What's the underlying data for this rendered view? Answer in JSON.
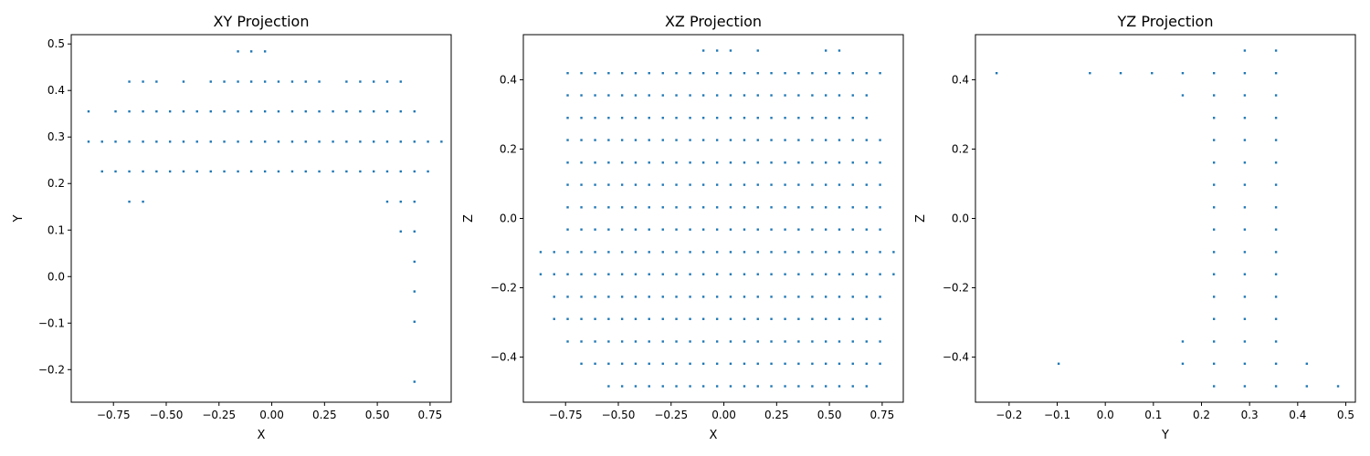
{
  "chart_data": [
    {
      "type": "scatter",
      "title": "XY Projection",
      "xlabel": "X",
      "ylabel": "Y",
      "xlim": [
        -0.95,
        0.85
      ],
      "ylim": [
        -0.27,
        0.52
      ],
      "xticks": [
        -0.75,
        -0.5,
        -0.25,
        0.0,
        0.25,
        0.5,
        0.75
      ],
      "xtick_labels": [
        "−0.75",
        "−0.50",
        "−0.25",
        "0.00",
        "0.25",
        "0.50",
        "0.75"
      ],
      "yticks": [
        -0.2,
        -0.1,
        0.0,
        0.1,
        0.2,
        0.3,
        0.4,
        0.5
      ],
      "ytick_labels": [
        "−0.2",
        "−0.1",
        "0.0",
        "0.1",
        "0.2",
        "0.3",
        "0.4",
        "0.5"
      ],
      "series": [
        {
          "color": "#1f77b4",
          "rows": [
            {
              "y": 0.484,
              "x": [
                -0.16,
                -0.097,
                -0.032
              ]
            },
            {
              "y": 0.419,
              "x": [
                -0.675,
                -0.61,
                -0.546,
                -0.418,
                -0.289,
                -0.225,
                -0.16,
                -0.097,
                -0.032,
                0.032,
                0.097,
                0.161,
                0.225,
                0.354,
                0.419,
                0.483,
                0.547,
                0.611
              ]
            },
            {
              "y": 0.355,
              "x": [
                -0.868,
                -0.74,
                -0.675,
                -0.61,
                -0.546,
                -0.482,
                -0.418,
                -0.354,
                -0.289,
                -0.225,
                -0.16,
                -0.097,
                -0.032,
                0.032,
                0.097,
                0.161,
                0.225,
                0.29,
                0.354,
                0.419,
                0.483,
                0.547,
                0.611,
                0.676
              ]
            },
            {
              "y": 0.29,
              "x": [
                -0.868,
                -0.804,
                -0.74,
                -0.675,
                -0.61,
                -0.546,
                -0.482,
                -0.418,
                -0.354,
                -0.289,
                -0.225,
                -0.16,
                -0.097,
                -0.032,
                0.032,
                0.097,
                0.161,
                0.225,
                0.29,
                0.354,
                0.419,
                0.483,
                0.547,
                0.611,
                0.676,
                0.74,
                0.804
              ]
            },
            {
              "y": 0.226,
              "x": [
                -0.804,
                -0.74,
                -0.675,
                -0.61,
                -0.546,
                -0.482,
                -0.418,
                -0.354,
                -0.289,
                -0.225,
                -0.16,
                -0.097,
                -0.032,
                0.032,
                0.097,
                0.161,
                0.225,
                0.29,
                0.354,
                0.419,
                0.483,
                0.547,
                0.611,
                0.676,
                0.74
              ]
            },
            {
              "y": 0.161,
              "x": [
                -0.675,
                -0.61,
                0.547,
                0.611,
                0.676
              ]
            },
            {
              "y": 0.097,
              "x": [
                0.611,
                0.676
              ]
            },
            {
              "y": 0.032,
              "x": [
                0.676
              ]
            },
            {
              "y": -0.032,
              "x": [
                0.676
              ]
            },
            {
              "y": -0.097,
              "x": [
                0.676
              ]
            },
            {
              "y": -0.226,
              "x": [
                0.676
              ]
            }
          ]
        }
      ]
    },
    {
      "type": "scatter",
      "title": "XZ Projection",
      "xlabel": "X",
      "ylabel": "Z",
      "xlim": [
        -0.95,
        0.85
      ],
      "ylim": [
        -0.53,
        0.53
      ],
      "xticks": [
        -0.75,
        -0.5,
        -0.25,
        0.0,
        0.25,
        0.5,
        0.75
      ],
      "xtick_labels": [
        "−0.75",
        "−0.50",
        "−0.25",
        "0.00",
        "0.25",
        "0.50",
        "0.75"
      ],
      "yticks": [
        -0.4,
        -0.2,
        0.0,
        0.2,
        0.4
      ],
      "ytick_labels": [
        "−0.4",
        "−0.2",
        "0.0",
        "0.2",
        "0.4"
      ],
      "series": [
        {
          "color": "#1f77b4",
          "rows": [
            {
              "y": 0.484,
              "x": [
                -0.097,
                -0.032,
                0.032,
                0.161,
                0.483,
                0.547
              ]
            },
            {
              "y": 0.419,
              "x": [
                -0.74,
                -0.675,
                -0.61,
                -0.546,
                -0.482,
                -0.418,
                -0.354,
                -0.289,
                -0.225,
                -0.16,
                -0.097,
                -0.032,
                0.032,
                0.097,
                0.161,
                0.225,
                0.29,
                0.354,
                0.419,
                0.483,
                0.547,
                0.611,
                0.676,
                0.74
              ]
            },
            {
              "y": 0.355,
              "x": [
                -0.74,
                -0.675,
                -0.61,
                -0.546,
                -0.482,
                -0.418,
                -0.354,
                -0.289,
                -0.225,
                -0.16,
                -0.097,
                -0.032,
                0.032,
                0.097,
                0.161,
                0.225,
                0.29,
                0.354,
                0.419,
                0.483,
                0.547,
                0.611,
                0.676
              ]
            },
            {
              "y": 0.29,
              "x": [
                -0.74,
                -0.675,
                -0.61,
                -0.546,
                -0.482,
                -0.418,
                -0.354,
                -0.289,
                -0.225,
                -0.16,
                -0.097,
                -0.032,
                0.032,
                0.097,
                0.161,
                0.225,
                0.29,
                0.354,
                0.419,
                0.483,
                0.547,
                0.611,
                0.676
              ]
            },
            {
              "y": 0.226,
              "x": [
                -0.74,
                -0.675,
                -0.61,
                -0.546,
                -0.482,
                -0.418,
                -0.354,
                -0.289,
                -0.225,
                -0.16,
                -0.097,
                -0.032,
                0.032,
                0.097,
                0.161,
                0.225,
                0.29,
                0.354,
                0.419,
                0.483,
                0.547,
                0.611,
                0.676,
                0.74
              ]
            },
            {
              "y": 0.161,
              "x": [
                -0.74,
                -0.675,
                -0.61,
                -0.546,
                -0.482,
                -0.418,
                -0.354,
                -0.289,
                -0.225,
                -0.16,
                -0.097,
                -0.032,
                0.032,
                0.097,
                0.161,
                0.225,
                0.29,
                0.354,
                0.419,
                0.483,
                0.547,
                0.611,
                0.676,
                0.74
              ]
            },
            {
              "y": 0.097,
              "x": [
                -0.74,
                -0.675,
                -0.61,
                -0.546,
                -0.482,
                -0.418,
                -0.354,
                -0.289,
                -0.225,
                -0.16,
                -0.097,
                -0.032,
                0.032,
                0.097,
                0.161,
                0.225,
                0.29,
                0.354,
                0.419,
                0.483,
                0.547,
                0.611,
                0.676,
                0.74
              ]
            },
            {
              "y": 0.032,
              "x": [
                -0.74,
                -0.675,
                -0.61,
                -0.546,
                -0.482,
                -0.418,
                -0.354,
                -0.289,
                -0.225,
                -0.16,
                -0.097,
                -0.032,
                0.032,
                0.097,
                0.161,
                0.225,
                0.29,
                0.354,
                0.419,
                0.483,
                0.547,
                0.611,
                0.676,
                0.74
              ]
            },
            {
              "y": -0.032,
              "x": [
                -0.74,
                -0.675,
                -0.61,
                -0.546,
                -0.482,
                -0.418,
                -0.354,
                -0.289,
                -0.225,
                -0.16,
                -0.097,
                -0.032,
                0.032,
                0.097,
                0.161,
                0.225,
                0.29,
                0.354,
                0.419,
                0.483,
                0.547,
                0.611,
                0.676,
                0.74
              ]
            },
            {
              "y": -0.097,
              "x": [
                -0.868,
                -0.804,
                -0.74,
                -0.675,
                -0.61,
                -0.546,
                -0.482,
                -0.418,
                -0.354,
                -0.289,
                -0.225,
                -0.16,
                -0.097,
                -0.032,
                0.032,
                0.097,
                0.161,
                0.225,
                0.29,
                0.354,
                0.419,
                0.483,
                0.547,
                0.611,
                0.676,
                0.74,
                0.804
              ]
            },
            {
              "y": -0.161,
              "x": [
                -0.868,
                -0.804,
                -0.74,
                -0.675,
                -0.61,
                -0.546,
                -0.482,
                -0.418,
                -0.354,
                -0.289,
                -0.225,
                -0.16,
                -0.097,
                -0.032,
                0.032,
                0.097,
                0.161,
                0.225,
                0.29,
                0.354,
                0.419,
                0.483,
                0.547,
                0.611,
                0.676,
                0.74,
                0.804
              ]
            },
            {
              "y": -0.226,
              "x": [
                -0.804,
                -0.74,
                -0.675,
                -0.61,
                -0.546,
                -0.482,
                -0.418,
                -0.354,
                -0.289,
                -0.225,
                -0.16,
                -0.097,
                -0.032,
                0.032,
                0.097,
                0.161,
                0.225,
                0.29,
                0.354,
                0.419,
                0.483,
                0.547,
                0.611,
                0.676,
                0.74
              ]
            },
            {
              "y": -0.29,
              "x": [
                -0.804,
                -0.74,
                -0.675,
                -0.61,
                -0.546,
                -0.482,
                -0.418,
                -0.354,
                -0.289,
                -0.225,
                -0.16,
                -0.097,
                -0.032,
                0.032,
                0.097,
                0.161,
                0.225,
                0.29,
                0.354,
                0.419,
                0.483,
                0.547,
                0.611,
                0.676,
                0.74
              ]
            },
            {
              "y": -0.355,
              "x": [
                -0.74,
                -0.675,
                -0.61,
                -0.546,
                -0.482,
                -0.418,
                -0.354,
                -0.289,
                -0.225,
                -0.16,
                -0.097,
                -0.032,
                0.032,
                0.097,
                0.161,
                0.225,
                0.29,
                0.354,
                0.419,
                0.483,
                0.547,
                0.611,
                0.676,
                0.74
              ]
            },
            {
              "y": -0.419,
              "x": [
                -0.675,
                -0.61,
                -0.546,
                -0.482,
                -0.418,
                -0.354,
                -0.289,
                -0.225,
                -0.16,
                -0.097,
                -0.032,
                0.032,
                0.097,
                0.161,
                0.225,
                0.29,
                0.354,
                0.419,
                0.483,
                0.547,
                0.611,
                0.676,
                0.74
              ]
            },
            {
              "y": -0.484,
              "x": [
                -0.546,
                -0.482,
                -0.418,
                -0.354,
                -0.289,
                -0.225,
                -0.16,
                -0.097,
                -0.032,
                0.032,
                0.097,
                0.161,
                0.225,
                0.29,
                0.354,
                0.419,
                0.483,
                0.547,
                0.611,
                0.676
              ]
            }
          ]
        }
      ]
    },
    {
      "type": "scatter",
      "title": "YZ Projection",
      "xlabel": "Y",
      "ylabel": "Z",
      "xlim": [
        -0.27,
        0.52
      ],
      "ylim": [
        -0.53,
        0.53
      ],
      "xticks": [
        -0.2,
        -0.1,
        0.0,
        0.1,
        0.2,
        0.3,
        0.4,
        0.5
      ],
      "xtick_labels": [
        "−0.2",
        "−0.1",
        "0.0",
        "0.1",
        "0.2",
        "0.3",
        "0.4",
        "0.5"
      ],
      "yticks": [
        -0.4,
        -0.2,
        0.0,
        0.2,
        0.4
      ],
      "ytick_labels": [
        "−0.4",
        "−0.2",
        "0.0",
        "0.2",
        "0.4"
      ],
      "series": [
        {
          "color": "#1f77b4",
          "rows": [
            {
              "y": 0.484,
              "x": [
                0.29,
                0.355
              ]
            },
            {
              "y": 0.419,
              "x": [
                -0.226,
                -0.032,
                0.032,
                0.097,
                0.161,
                0.226,
                0.29,
                0.355
              ]
            },
            {
              "y": 0.355,
              "x": [
                0.161,
                0.226,
                0.29,
                0.355
              ]
            },
            {
              "y": 0.29,
              "x": [
                0.226,
                0.29,
                0.355
              ]
            },
            {
              "y": 0.226,
              "x": [
                0.226,
                0.29,
                0.355
              ]
            },
            {
              "y": 0.161,
              "x": [
                0.226,
                0.29,
                0.355
              ]
            },
            {
              "y": 0.097,
              "x": [
                0.226,
                0.29,
                0.355
              ]
            },
            {
              "y": 0.032,
              "x": [
                0.226,
                0.29,
                0.355
              ]
            },
            {
              "y": -0.032,
              "x": [
                0.226,
                0.29,
                0.355
              ]
            },
            {
              "y": -0.097,
              "x": [
                0.226,
                0.29,
                0.355
              ]
            },
            {
              "y": -0.161,
              "x": [
                0.226,
                0.29,
                0.355
              ]
            },
            {
              "y": -0.226,
              "x": [
                0.226,
                0.29,
                0.355
              ]
            },
            {
              "y": -0.29,
              "x": [
                0.226,
                0.29,
                0.355
              ]
            },
            {
              "y": -0.355,
              "x": [
                0.161,
                0.226,
                0.29,
                0.355
              ]
            },
            {
              "y": -0.419,
              "x": [
                -0.097,
                0.161,
                0.226,
                0.29,
                0.355,
                0.419
              ]
            },
            {
              "y": -0.484,
              "x": [
                0.226,
                0.29,
                0.355,
                0.419,
                0.484
              ]
            }
          ]
        }
      ]
    }
  ]
}
